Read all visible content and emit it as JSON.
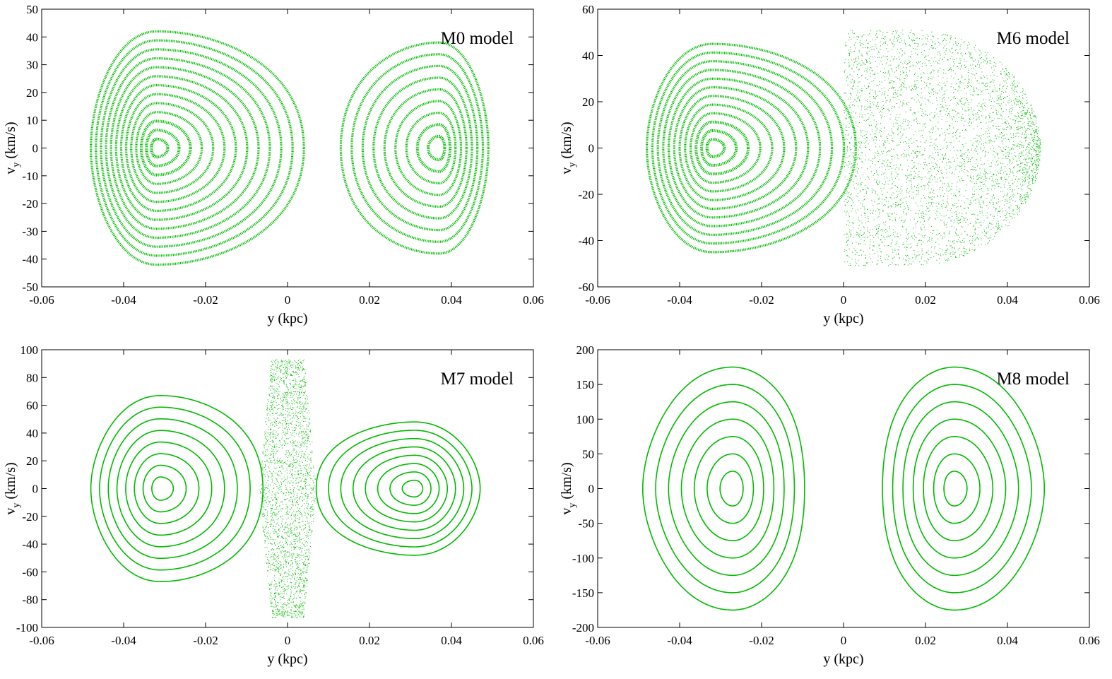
{
  "figure": {
    "point_color": "#00bb00",
    "frame_color": "#000000"
  },
  "chart_data": [
    {
      "type": "scatter",
      "title": "M0 model",
      "xlabel": "y (kpc)",
      "ylabel_main": "v",
      "ylabel_sub": "y",
      "ylabel_unit": " (km/s)",
      "xlim": [
        -0.06,
        0.06
      ],
      "ylim": [
        -50,
        50
      ],
      "xticks": [
        -0.06,
        -0.04,
        -0.02,
        0,
        0.02,
        0.04,
        0.06
      ],
      "xtick_labels": [
        "-0.06",
        "-0.04",
        "-0.02",
        "0",
        "0.02",
        "0.04",
        "0.06"
      ],
      "yticks": [
        -50,
        -40,
        -30,
        -20,
        -10,
        0,
        10,
        20,
        30,
        40,
        50
      ],
      "ytick_labels": [
        "-50",
        "-40",
        "-30",
        "-20",
        "-10",
        "0",
        "10",
        "20",
        "30",
        "40",
        "50"
      ],
      "style": "dense",
      "islands": [
        {
          "center_x": -0.032,
          "x_left": -0.048,
          "x_right": 0.004,
          "vmax": 42,
          "skew": 0.35,
          "orbits": 13
        },
        {
          "center_x": 0.037,
          "x_left": 0.013,
          "x_right": 0.049,
          "vmax": 38,
          "skew": -0.3,
          "orbits": 9
        }
      ],
      "chaotic": null
    },
    {
      "type": "scatter",
      "title": "M6 model",
      "xlabel": "y (kpc)",
      "ylabel_main": "v",
      "ylabel_sub": "y",
      "ylabel_unit": " (km/s)",
      "xlim": [
        -0.06,
        0.06
      ],
      "ylim": [
        -60,
        60
      ],
      "xticks": [
        -0.06,
        -0.04,
        -0.02,
        0,
        0.02,
        0.04,
        0.06
      ],
      "xtick_labels": [
        "-0.06",
        "-0.04",
        "-0.02",
        "0",
        "0.02",
        "0.04",
        "0.06"
      ],
      "yticks": [
        -60,
        -40,
        -20,
        0,
        20,
        40,
        60
      ],
      "ytick_labels": [
        "-60",
        "-40",
        "-20",
        "0",
        "20",
        "40",
        "60"
      ],
      "style": "dense",
      "islands": [
        {
          "center_x": -0.032,
          "x_left": -0.048,
          "x_right": 0.003,
          "vmax": 45,
          "skew": 0.35,
          "orbits": 12
        }
      ],
      "chaotic": {
        "x_left": 0.0,
        "x_right": 0.048,
        "center_x": 0.038,
        "vmax": 51
      }
    },
    {
      "type": "scatter",
      "title": "M7 model",
      "xlabel": "y (kpc)",
      "ylabel_main": "v",
      "ylabel_sub": "y",
      "ylabel_unit": " (km/s)",
      "xlim": [
        -0.06,
        0.06
      ],
      "ylim": [
        -100,
        100
      ],
      "xticks": [
        -0.06,
        -0.04,
        -0.02,
        0,
        0.02,
        0.04,
        0.06
      ],
      "xtick_labels": [
        "-0.06",
        "-0.04",
        "-0.02",
        "0",
        "0.02",
        "0.04",
        "0.06"
      ],
      "yticks": [
        -100,
        -80,
        -60,
        -40,
        -20,
        0,
        20,
        40,
        60,
        80,
        100
      ],
      "ytick_labels": [
        "-100",
        "-80",
        "-60",
        "-40",
        "-20",
        "0",
        "20",
        "40",
        "60",
        "80",
        "100"
      ],
      "style": "line",
      "islands": [
        {
          "center_x": -0.031,
          "x_left": -0.048,
          "x_right": -0.006,
          "vmax": 67,
          "skew": 0.45,
          "orbits": 8
        },
        {
          "center_x": 0.031,
          "x_left": 0.007,
          "x_right": 0.047,
          "vmax": 48,
          "skew": -0.45,
          "orbits": 8
        }
      ],
      "chaotic_strip": {
        "center_x": 0.0,
        "half_width": 0.004,
        "vmax": 93
      }
    },
    {
      "type": "scatter",
      "title": "M8 model",
      "xlabel": "y (kpc)",
      "ylabel_main": "v",
      "ylabel_sub": "y",
      "ylabel_unit": " (km/s)",
      "xlim": [
        -0.06,
        0.06
      ],
      "ylim": [
        -200,
        200
      ],
      "xticks": [
        -0.06,
        -0.04,
        -0.02,
        0,
        0.02,
        0.04,
        0.06
      ],
      "xtick_labels": [
        "-0.06",
        "-0.04",
        "-0.02",
        "0",
        "0.02",
        "0.04",
        "0.06"
      ],
      "yticks": [
        -200,
        -150,
        -100,
        -50,
        0,
        50,
        100,
        150,
        200
      ],
      "ytick_labels": [
        "-200",
        "-150",
        "-100",
        "-50",
        "0",
        "50",
        "100",
        "150",
        "200"
      ],
      "style": "line",
      "islands": [
        {
          "center_x": -0.027,
          "x_left": -0.049,
          "x_right": -0.0095,
          "vmax": 175,
          "skew": 0.55,
          "orbits": 7
        },
        {
          "center_x": 0.027,
          "x_left": 0.0095,
          "x_right": 0.049,
          "vmax": 175,
          "skew": -0.55,
          "orbits": 7
        }
      ],
      "chaotic": null
    }
  ]
}
